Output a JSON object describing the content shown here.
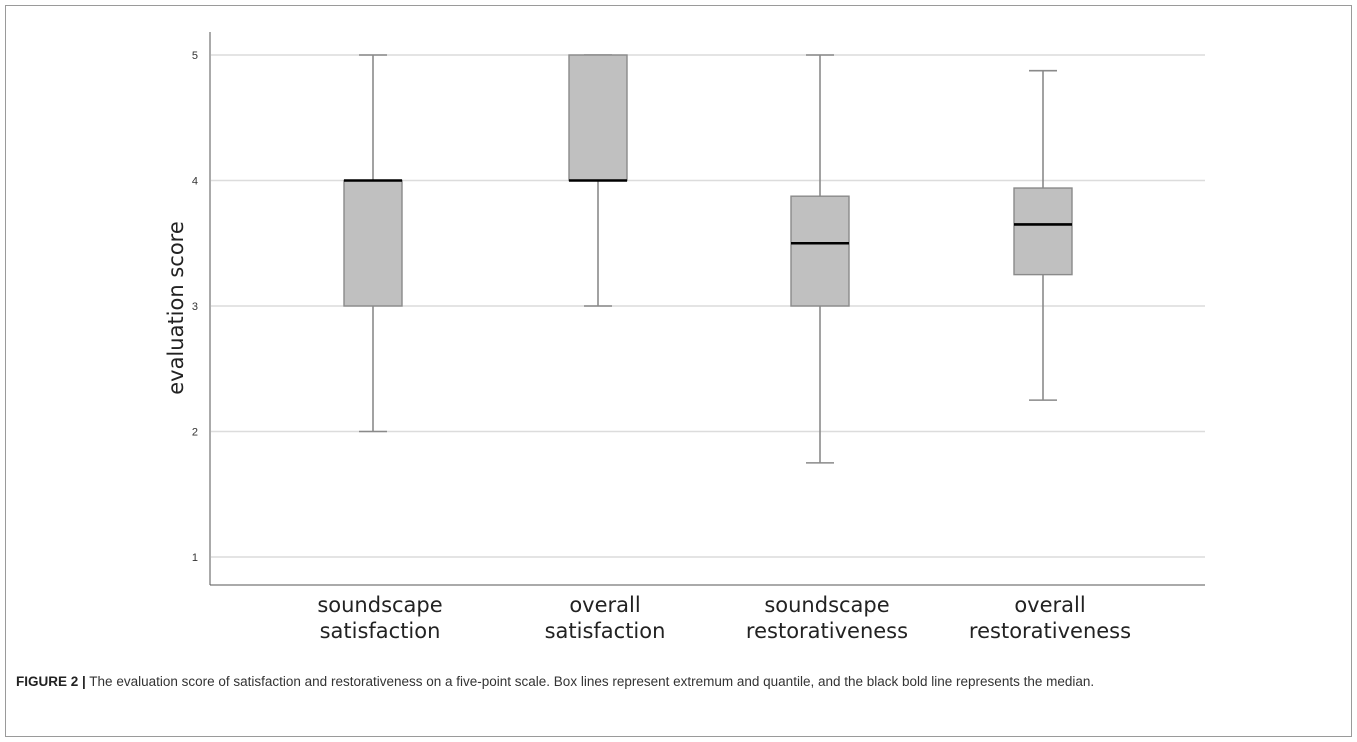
{
  "chart_data": {
    "type": "boxplot",
    "ylabel": "evaluation score",
    "ylim": [
      0.8,
      5.2
    ],
    "yticks": [
      "1",
      "2",
      "3",
      "4",
      "5"
    ],
    "grid": true,
    "categories": [
      [
        "soundscape",
        "satisfaction"
      ],
      [
        "overall",
        "satisfaction"
      ],
      [
        "soundscape",
        "restorativeness"
      ],
      [
        "overall",
        "restorativeness"
      ]
    ],
    "boxes": [
      {
        "min": 2.0,
        "q1": 3.0,
        "median": 4.0,
        "q3": 4.0,
        "max": 5.0
      },
      {
        "min": 3.0,
        "q1": 4.0,
        "median": 4.0,
        "q3": 5.0,
        "max": 5.0
      },
      {
        "min": 1.75,
        "q1": 3.0,
        "median": 3.5,
        "q3": 3.875,
        "max": 5.0
      },
      {
        "min": 2.25,
        "q1": 3.25,
        "median": 3.65,
        "q3": 3.94,
        "max": 4.875
      }
    ],
    "colors": {
      "box_fill": "#c0c0c0",
      "box_stroke": "#8a8a8a",
      "median": "#000000",
      "grid": "#dcdcdc"
    }
  },
  "caption": {
    "label": "FIGURE 2 |",
    "text": " The evaluation score of satisfaction and restorativeness on a five-point scale. Box lines represent extremum and quantile, and the black bold line represents the median."
  }
}
